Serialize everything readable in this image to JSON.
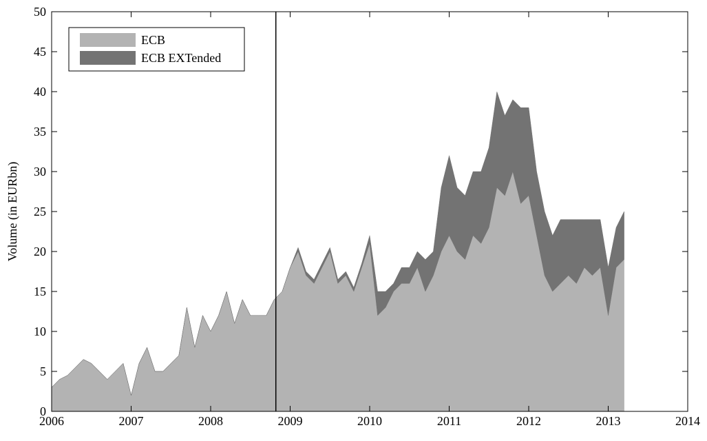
{
  "chart_data": {
    "type": "stacked_area",
    "ylabel": "Volume (in EURbn)",
    "x": [
      2006,
      2006.1,
      2006.2,
      2006.3,
      2006.4,
      2006.5,
      2006.6,
      2006.7,
      2006.8,
      2006.9,
      2007,
      2007.1,
      2007.2,
      2007.3,
      2007.4,
      2007.5,
      2007.6,
      2007.7,
      2007.8,
      2007.9,
      2008,
      2008.1,
      2008.2,
      2008.3,
      2008.4,
      2008.5,
      2008.6,
      2008.7,
      2008.8,
      2008.9,
      2009,
      2009.1,
      2009.2,
      2009.3,
      2009.4,
      2009.5,
      2009.6,
      2009.7,
      2009.8,
      2009.9,
      2010,
      2010.1,
      2010.2,
      2010.3,
      2010.4,
      2010.5,
      2010.6,
      2010.7,
      2010.8,
      2010.9,
      2011,
      2011.1,
      2011.2,
      2011.3,
      2011.4,
      2011.5,
      2011.6,
      2011.7,
      2011.8,
      2011.9,
      2012,
      2012.1,
      2012.2,
      2012.3,
      2012.4,
      2012.5,
      2012.6,
      2012.7,
      2012.8,
      2012.9,
      2013,
      2013.1,
      2013.2
    ],
    "series": [
      {
        "name": "ECB",
        "color": "#b3b3b3",
        "values": [
          3,
          4,
          4.5,
          5.5,
          6.5,
          6,
          5,
          4,
          5,
          6,
          2,
          6,
          8,
          5,
          5,
          6,
          7,
          13,
          8,
          12,
          10,
          12,
          15,
          11,
          14,
          12,
          12,
          12,
          14,
          15,
          18,
          20,
          17,
          16,
          18,
          20,
          16,
          17,
          15,
          18,
          21,
          12,
          13,
          15,
          16,
          16,
          18,
          15,
          17,
          20,
          22,
          20,
          19,
          22,
          21,
          23,
          28,
          27,
          30,
          26,
          27,
          22,
          17,
          15,
          16,
          17,
          16,
          18,
          17,
          18,
          12,
          18,
          19
        ]
      },
      {
        "name": "ECB EXTended",
        "color": "#737373",
        "values": [
          0,
          0,
          0,
          0,
          0,
          0,
          0,
          0,
          0,
          0,
          0,
          0,
          0,
          0,
          0,
          0,
          0,
          0,
          0,
          0,
          0,
          0,
          0,
          0,
          0,
          0,
          0,
          0,
          0,
          0,
          0,
          0.5,
          0.5,
          0.5,
          0.5,
          0.5,
          0.5,
          0.5,
          0.5,
          0.5,
          1,
          3,
          2,
          1,
          2,
          2,
          2,
          4,
          3,
          8,
          10,
          8,
          8,
          8,
          9,
          10,
          12,
          10,
          9,
          12,
          11,
          8,
          8,
          7,
          8,
          7,
          8,
          6,
          7,
          6,
          6,
          5,
          6
        ]
      }
    ],
    "reference_line_x": 2008.82,
    "xlim": [
      2006,
      2014
    ],
    "xticks": [
      2006,
      2007,
      2008,
      2009,
      2010,
      2011,
      2012,
      2013,
      2014
    ],
    "ylim": [
      0,
      50
    ],
    "yticks": [
      0,
      5,
      10,
      15,
      20,
      25,
      30,
      35,
      40,
      45,
      50
    ],
    "legend": "upper-left"
  }
}
